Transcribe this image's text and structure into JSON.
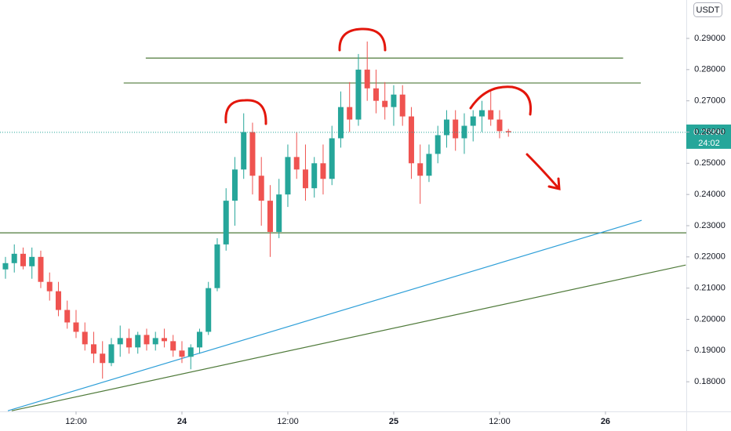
{
  "chart_data": {
    "type": "candlestick",
    "currency": "USDT",
    "up_color": "#26a69a",
    "down_color": "#ef5350",
    "grid": false,
    "xlim": [
      3.38,
      81.16
    ],
    "xticks": [
      {
        "value": 12,
        "label": "12:00"
      },
      {
        "value": 24,
        "label": "24"
      },
      {
        "value": 36,
        "label": "12:00"
      },
      {
        "value": 48,
        "label": "25"
      },
      {
        "value": 60,
        "label": "12:00"
      },
      {
        "value": 72,
        "label": "26"
      }
    ],
    "ylim": [
      0.1705,
      0.3023
    ],
    "yticks": [
      {
        "value": 0.18,
        "label": "0.18000"
      },
      {
        "value": 0.19,
        "label": "0.19000"
      },
      {
        "value": 0.2,
        "label": "0.20000"
      },
      {
        "value": 0.21,
        "label": "0.21000"
      },
      {
        "value": 0.22,
        "label": "0.22000"
      },
      {
        "value": 0.23,
        "label": "0.23000"
      },
      {
        "value": 0.24,
        "label": "0.24000"
      },
      {
        "value": 0.25,
        "label": "0.25000"
      },
      {
        "value": 0.26,
        "label": "0.26000"
      },
      {
        "value": 0.27,
        "label": "0.27000"
      },
      {
        "value": 0.28,
        "label": "0.28000"
      },
      {
        "value": 0.29,
        "label": "0.29000"
      }
    ],
    "x": [
      4,
      5,
      6,
      7,
      8,
      9,
      10,
      11,
      12,
      13,
      14,
      15,
      16,
      17,
      18,
      19,
      20,
      21,
      22,
      23,
      24,
      25,
      26,
      27,
      28,
      29,
      30,
      31,
      32,
      33,
      34,
      35,
      36,
      37,
      38,
      39,
      40,
      41,
      42,
      43,
      44,
      45,
      46,
      47,
      48,
      49,
      50,
      51,
      52,
      53,
      54,
      55,
      56,
      57,
      58,
      59,
      60,
      61
    ],
    "open": [
      0.216,
      0.218,
      0.221,
      0.217,
      0.22,
      0.212,
      0.209,
      0.203,
      0.199,
      0.196,
      0.192,
      0.189,
      0.186,
      0.192,
      0.194,
      0.191,
      0.195,
      0.192,
      0.194,
      0.193,
      0.19,
      0.188,
      0.191,
      0.196,
      0.21,
      0.224,
      0.238,
      0.248,
      0.26,
      0.246,
      0.238,
      0.228,
      0.24,
      0.252,
      0.248,
      0.242,
      0.25,
      0.245,
      0.258,
      0.268,
      0.264,
      0.28,
      0.274,
      0.27,
      0.268,
      0.272,
      0.265,
      0.25,
      0.246,
      0.253,
      0.259,
      0.264,
      0.258,
      0.262,
      0.265,
      0.267,
      0.264,
      0.2603
    ],
    "high": [
      0.22,
      0.224,
      0.223,
      0.223,
      0.222,
      0.215,
      0.212,
      0.206,
      0.203,
      0.199,
      0.196,
      0.193,
      0.194,
      0.198,
      0.197,
      0.196,
      0.197,
      0.196,
      0.197,
      0.195,
      0.193,
      0.192,
      0.197,
      0.212,
      0.226,
      0.242,
      0.252,
      0.266,
      0.263,
      0.252,
      0.243,
      0.245,
      0.256,
      0.26,
      0.256,
      0.252,
      0.256,
      0.262,
      0.273,
      0.276,
      0.285,
      0.289,
      0.28,
      0.276,
      0.275,
      0.275,
      0.268,
      0.256,
      0.256,
      0.262,
      0.267,
      0.267,
      0.266,
      0.267,
      0.27,
      0.273,
      0.267,
      0.261
    ],
    "low": [
      0.213,
      0.215,
      0.216,
      0.213,
      0.21,
      0.206,
      0.201,
      0.197,
      0.194,
      0.19,
      0.186,
      0.181,
      0.185,
      0.188,
      0.189,
      0.189,
      0.19,
      0.19,
      0.191,
      0.188,
      0.186,
      0.184,
      0.189,
      0.195,
      0.209,
      0.222,
      0.23,
      0.245,
      0.24,
      0.23,
      0.22,
      0.226,
      0.236,
      0.245,
      0.238,
      0.239,
      0.24,
      0.243,
      0.255,
      0.26,
      0.262,
      0.27,
      0.266,
      0.264,
      0.262,
      0.262,
      0.245,
      0.237,
      0.244,
      0.25,
      0.255,
      0.254,
      0.253,
      0.257,
      0.26,
      0.262,
      0.258,
      0.2585
    ],
    "close": [
      0.218,
      0.221,
      0.217,
      0.22,
      0.212,
      0.209,
      0.203,
      0.199,
      0.196,
      0.192,
      0.189,
      0.186,
      0.192,
      0.194,
      0.191,
      0.195,
      0.192,
      0.194,
      0.193,
      0.19,
      0.188,
      0.191,
      0.196,
      0.21,
      0.224,
      0.238,
      0.248,
      0.26,
      0.246,
      0.238,
      0.228,
      0.24,
      0.252,
      0.248,
      0.242,
      0.25,
      0.245,
      0.258,
      0.268,
      0.264,
      0.28,
      0.274,
      0.27,
      0.268,
      0.272,
      0.265,
      0.25,
      0.246,
      0.253,
      0.259,
      0.264,
      0.258,
      0.262,
      0.265,
      0.267,
      0.264,
      0.2603,
      0.2599
    ],
    "last_price": {
      "value": 0.2599,
      "label": "0.25990"
    },
    "countdown": "24:02",
    "levels": [
      {
        "color": "#4f7a3a",
        "x": [
          19.9,
          74.0
        ],
        "y": 0.2837
      },
      {
        "color": "#4f7a3a",
        "x": [
          17.4,
          76.0
        ],
        "y": 0.2757
      },
      {
        "color": "#4f7a3a",
        "x": [
          3.38,
          81.16
        ],
        "y": 0.2277
      }
    ],
    "trendlines": [
      {
        "color": "#2e9fd8",
        "x": [
          4.27,
          76.1
        ],
        "y": [
          0.1707,
          0.2317
        ]
      },
      {
        "color": "#4f7a3a",
        "x": [
          4.71,
          81.1
        ],
        "y": [
          0.1707,
          0.2174
        ]
      }
    ]
  }
}
